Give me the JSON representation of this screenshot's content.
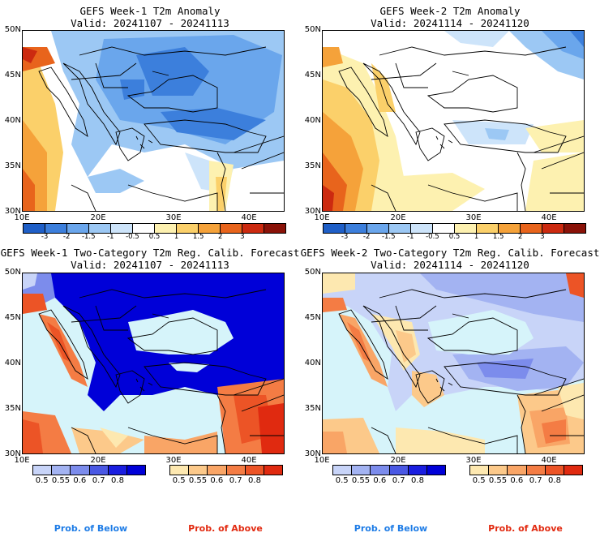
{
  "panels": [
    {
      "title": "GEFS Week-1 T2m Anomaly",
      "valid": "Valid: 20241107 - 20241113"
    },
    {
      "title": "GEFS Week-2 T2m Anomaly",
      "valid": "Valid: 20241114 - 20241120"
    },
    {
      "title": "GEFS Week-1 Two-Category T2m Reg. Calib. Forecast",
      "valid": "Valid: 20241107 - 20241113"
    },
    {
      "title": "GEFS Week-2 Two-Category T2m Reg. Calib. Forecast",
      "valid": "Valid: 20241114 - 20241120"
    }
  ],
  "axes": {
    "lat_labels": [
      "50N",
      "45N",
      "40N",
      "35N",
      "30N"
    ],
    "lon_labels": [
      "10E",
      "20E",
      "30E",
      "40E"
    ]
  },
  "anomaly_colorbar": {
    "ticks": [
      "-3",
      "-2",
      "-1.5",
      "-1",
      "-0.5",
      "0.5",
      "1",
      "1.5",
      "2",
      "3"
    ],
    "colors": [
      "#1f5fc7",
      "#3c7fdc",
      "#6aa6ec",
      "#9cc8f4",
      "#cde4fa",
      "#ffffff",
      "#fdf1b0",
      "#fbd06a",
      "#f5a23a",
      "#e8641c",
      "#cc2a10",
      "#8a1208"
    ]
  },
  "prob_colorbar": {
    "ticks": [
      "0.5",
      "0.55",
      "0.6",
      "0.7",
      "0.8"
    ],
    "below_colors": [
      "#c8d4f8",
      "#a3b3f2",
      "#7c8cec",
      "#4a58e4",
      "#1a1ee0",
      "#0000d8"
    ],
    "above_colors": [
      "#fde8b0",
      "#fcc98a",
      "#f9a566",
      "#f47c44",
      "#ec5426",
      "#e02a10"
    ]
  },
  "labels": {
    "below": "Prob. of Below",
    "above": "Prob. of Above"
  },
  "colors": {
    "sea_light": "#d6f4fa",
    "below_label": "#1e7ce6",
    "above_label": "#e22a10"
  }
}
